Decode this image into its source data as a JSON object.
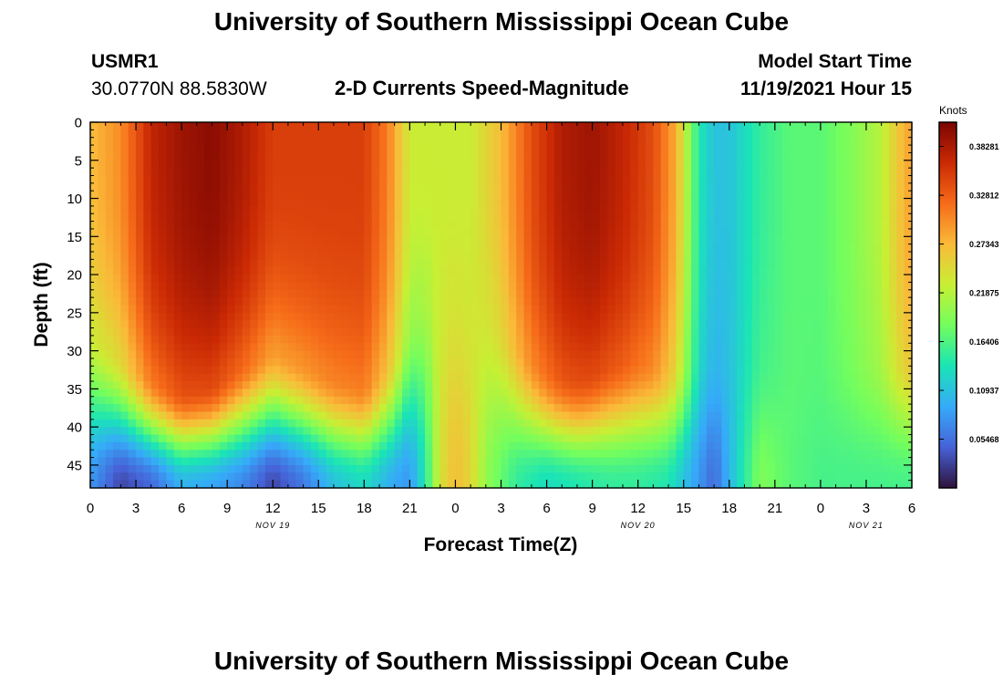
{
  "header": {
    "title": "University of Southern Mississippi Ocean Cube",
    "station": "USMR1",
    "coords": "30.0770N  88.5830W",
    "plot_title": "2-D Currents Speed-Magnitude",
    "model_start_label": "Model Start Time",
    "model_start_value": "11/19/2021 Hour 15"
  },
  "footer": {
    "title": "University of Southern Mississippi Ocean Cube"
  },
  "colorbar": {
    "unit": "Knots",
    "labels": [
      "0.38281",
      "0.32812",
      "0.27343",
      "0.21875",
      "0.16406",
      "0.10937",
      "0.05468"
    ],
    "colors": [
      "#30123b",
      "#4662d7",
      "#36aaf9",
      "#1ae4b6",
      "#72fe5e",
      "#c8ef34",
      "#faba39",
      "#f66b19",
      "#cb2a04",
      "#7a0403"
    ]
  },
  "chart_data": {
    "type": "heatmap",
    "title": "2-D Currents Speed-Magnitude",
    "xlabel": "Forecast Time(Z)",
    "ylabel": "Depth (ft)",
    "x_tick_labels": [
      "0",
      "3",
      "6",
      "9",
      "12",
      "15",
      "18",
      "21",
      "0",
      "3",
      "6",
      "9",
      "12",
      "15",
      "18",
      "21",
      "0",
      "3",
      "6"
    ],
    "date_labels": [
      {
        "text": "NOV 19",
        "at_tick": 4
      },
      {
        "text": "NOV 20",
        "at_tick": 12
      },
      {
        "text": "NOV 21",
        "at_tick": 17
      }
    ],
    "y_ticks": [
      0,
      5,
      10,
      15,
      20,
      25,
      30,
      35,
      40,
      45
    ],
    "ylim": [
      0,
      48
    ],
    "xlim_hours": [
      0,
      54
    ],
    "value_range": [
      0.0,
      0.41
    ],
    "unit": "Knots",
    "surface_speed_knots": [
      [
        0,
        0.27
      ],
      [
        2,
        0.3
      ],
      [
        4,
        0.37
      ],
      [
        6,
        0.39
      ],
      [
        8,
        0.4
      ],
      [
        10,
        0.38
      ],
      [
        12,
        0.35
      ],
      [
        14,
        0.35
      ],
      [
        16,
        0.35
      ],
      [
        18,
        0.35
      ],
      [
        19.5,
        0.31
      ],
      [
        21,
        0.23
      ],
      [
        23,
        0.23
      ],
      [
        25,
        0.23
      ],
      [
        27,
        0.27
      ],
      [
        29,
        0.34
      ],
      [
        31,
        0.38
      ],
      [
        33,
        0.39
      ],
      [
        35,
        0.37
      ],
      [
        37,
        0.34
      ],
      [
        38.5,
        0.28
      ],
      [
        40,
        0.14
      ],
      [
        41,
        0.11
      ],
      [
        42,
        0.11
      ],
      [
        44,
        0.15
      ],
      [
        46,
        0.17
      ],
      [
        48,
        0.17
      ],
      [
        50,
        0.19
      ],
      [
        52,
        0.22
      ],
      [
        53,
        0.26
      ],
      [
        54,
        0.29
      ]
    ],
    "bottom_speed_knots": [
      [
        0,
        0.08
      ],
      [
        2,
        0.03
      ],
      [
        4,
        0.05
      ],
      [
        6,
        0.1
      ],
      [
        8,
        0.09
      ],
      [
        10,
        0.07
      ],
      [
        12,
        0.03
      ],
      [
        14,
        0.06
      ],
      [
        16,
        0.11
      ],
      [
        18,
        0.13
      ],
      [
        20,
        0.09
      ],
      [
        21,
        0.08
      ],
      [
        22,
        0.14
      ],
      [
        23,
        0.24
      ],
      [
        24,
        0.27
      ],
      [
        25,
        0.25
      ],
      [
        26,
        0.2
      ],
      [
        28,
        0.15
      ],
      [
        30,
        0.13
      ],
      [
        32,
        0.14
      ],
      [
        34,
        0.15
      ],
      [
        36,
        0.15
      ],
      [
        38,
        0.14
      ],
      [
        40,
        0.08
      ],
      [
        41,
        0.05
      ],
      [
        42,
        0.1
      ],
      [
        44,
        0.19
      ],
      [
        46,
        0.17
      ],
      [
        48,
        0.16
      ],
      [
        50,
        0.16
      ],
      [
        52,
        0.16
      ],
      [
        54,
        0.16
      ]
    ],
    "transition_depth_ft": [
      [
        0,
        26
      ],
      [
        2,
        30
      ],
      [
        4,
        33
      ],
      [
        6,
        35
      ],
      [
        8,
        34
      ],
      [
        10,
        31
      ],
      [
        12,
        29
      ],
      [
        14,
        31
      ],
      [
        16,
        33
      ],
      [
        18,
        34
      ],
      [
        20,
        30
      ],
      [
        22,
        20
      ],
      [
        24,
        20
      ],
      [
        26,
        20
      ],
      [
        28,
        28
      ],
      [
        30,
        32
      ],
      [
        32,
        33
      ],
      [
        34,
        31
      ],
      [
        36,
        30
      ],
      [
        38,
        31
      ],
      [
        40,
        30
      ],
      [
        42,
        30
      ],
      [
        44,
        30
      ],
      [
        46,
        30
      ],
      [
        48,
        30
      ],
      [
        50,
        30
      ],
      [
        52,
        30
      ],
      [
        54,
        30
      ]
    ]
  }
}
